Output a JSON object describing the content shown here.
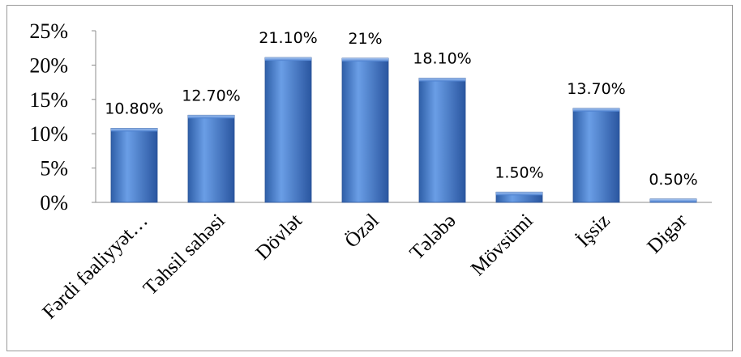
{
  "chart_data": {
    "type": "bar",
    "title": "",
    "xlabel": "",
    "ylabel": "",
    "ylim": [
      0,
      25
    ],
    "yticks": [
      "0%",
      "5%",
      "10%",
      "15%",
      "20%",
      "25%"
    ],
    "categories": [
      "Fərdi fəaliyyət…",
      "Təhsil sahəsi",
      "Dövlət",
      "Özəl",
      "Tələbə",
      "Mövsümi",
      "İşsiz",
      "Digər"
    ],
    "values": [
      10.8,
      12.7,
      21.1,
      21,
      18.1,
      1.5,
      13.7,
      0.5
    ],
    "data_labels": [
      "10.80%",
      "12.70%",
      "21.10%",
      "21%",
      "18.10%",
      "1.50%",
      "13.70%",
      "0.50%"
    ],
    "bar_color": "#4a7fcf",
    "grid": false,
    "legend": "none"
  }
}
